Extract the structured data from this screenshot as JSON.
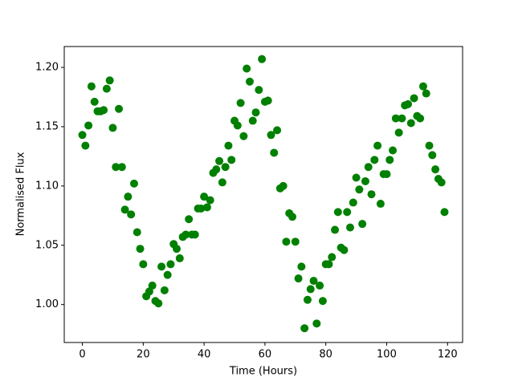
{
  "chart_data": {
    "type": "scatter",
    "xlabel": "Time (Hours)",
    "ylabel": "Normalised Flux",
    "color": "green",
    "x": [
      0,
      1,
      2,
      3,
      4,
      5,
      6,
      7,
      8,
      9,
      10,
      11,
      12,
      13,
      14,
      15,
      16,
      17,
      18,
      19,
      20,
      21,
      22,
      23,
      24,
      25,
      26,
      27,
      28,
      29,
      30,
      31,
      32,
      33,
      34,
      35,
      36,
      37,
      38,
      39,
      40,
      41,
      42,
      43,
      44,
      45,
      46,
      47,
      48,
      49,
      50,
      51,
      52,
      53,
      54,
      55,
      56,
      57,
      58,
      59,
      60,
      61,
      62,
      63,
      64,
      65,
      66,
      67,
      68,
      69,
      70,
      71,
      72,
      73,
      74,
      75,
      76,
      77,
      78,
      79,
      80,
      81,
      82,
      83,
      84,
      85,
      86,
      87,
      88,
      89,
      90,
      91,
      92,
      93,
      94,
      95,
      96,
      97,
      98,
      99,
      100,
      101,
      102,
      103,
      104,
      105,
      106,
      107,
      108,
      109,
      110,
      111,
      112,
      113,
      114,
      115,
      116,
      117,
      118,
      119
    ],
    "values": [
      1.143,
      1.134,
      1.151,
      1.184,
      1.171,
      1.163,
      1.163,
      1.164,
      1.182,
      1.189,
      1.149,
      1.116,
      1.165,
      1.116,
      1.08,
      1.091,
      1.076,
      1.102,
      1.061,
      1.047,
      1.034,
      1.007,
      1.011,
      1.016,
      1.003,
      1.001,
      1.032,
      1.012,
      1.025,
      1.034,
      1.051,
      1.047,
      1.039,
      1.057,
      1.059,
      1.072,
      1.059,
      1.059,
      1.081,
      1.081,
      1.091,
      1.082,
      1.088,
      1.111,
      1.114,
      1.121,
      1.103,
      1.116,
      1.134,
      1.122,
      1.155,
      1.151,
      1.17,
      1.142,
      1.199,
      1.188,
      1.155,
      1.162,
      1.181,
      1.207,
      1.171,
      1.172,
      1.143,
      1.128,
      1.147,
      1.098,
      1.1,
      1.053,
      1.077,
      1.074,
      1.053,
      1.022,
      1.032,
      0.98,
      1.004,
      1.013,
      1.02,
      0.984,
      1.016,
      1.003,
      1.034,
      1.034,
      1.04,
      1.063,
      1.078,
      1.048,
      1.046,
      1.078,
      1.065,
      1.086,
      1.107,
      1.097,
      1.068,
      1.104,
      1.116,
      1.093,
      1.122,
      1.134,
      1.085,
      1.11,
      1.11,
      1.122,
      1.13,
      1.157,
      1.145,
      1.157,
      1.168,
      1.169,
      1.153,
      1.174,
      1.159,
      1.157,
      1.184,
      1.178,
      1.134,
      1.126,
      1.114,
      1.106,
      1.103,
      1.078
    ],
    "xlim": [
      -5.95,
      124.95
    ],
    "ylim": [
      0.968,
      1.2176
    ],
    "xticks": [
      0,
      20,
      40,
      60,
      80,
      100,
      120
    ],
    "yticks": [
      {
        "value": 1.0,
        "label": "1.00"
      },
      {
        "value": 1.05,
        "label": "1.05"
      },
      {
        "value": 1.1,
        "label": "1.10"
      },
      {
        "value": 1.15,
        "label": "1.15"
      },
      {
        "value": 1.2,
        "label": "1.20"
      }
    ]
  }
}
